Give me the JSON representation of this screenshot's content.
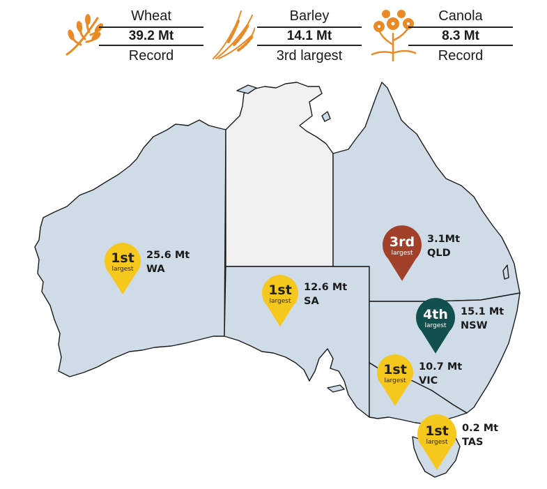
{
  "header": {
    "crops": [
      {
        "name": "Wheat",
        "value": "39.2 Mt",
        "note": "Record",
        "icon": "wheat-icon"
      },
      {
        "name": "Barley",
        "value": "14.1 Mt",
        "note": "3rd largest",
        "icon": "barley-icon"
      },
      {
        "name": "Canola",
        "value": "8.3 Mt",
        "note": "Record",
        "icon": "canola-icon"
      }
    ]
  },
  "colors": {
    "land": "#cfdbe6",
    "nt": "#f1f1f1",
    "border": "#1a1a1a",
    "gold": "#f6c71c",
    "rust": "#a3402a",
    "teal": "#12504f",
    "icon": "#ea8a26"
  },
  "states": [
    {
      "id": "WA",
      "rank": "1st",
      "rank_sub": "largest",
      "value": "25.6 Mt",
      "label": "WA",
      "color": "#f6c71c",
      "text_color": "#222222"
    },
    {
      "id": "SA",
      "rank": "1st",
      "rank_sub": "largest",
      "value": "12.6 Mt",
      "label": "SA",
      "color": "#f6c71c",
      "text_color": "#222222"
    },
    {
      "id": "QLD",
      "rank": "3rd",
      "rank_sub": "largest",
      "value": "3.1Mt",
      "label": "QLD",
      "color": "#a3402a",
      "text_color": "#ffffff"
    },
    {
      "id": "NSW",
      "rank": "4th",
      "rank_sub": "largest",
      "value": "15.1 Mt",
      "label": "NSW",
      "color": "#12504f",
      "text_color": "#ffffff"
    },
    {
      "id": "VIC",
      "rank": "1st",
      "rank_sub": "largest",
      "value": "10.7 Mt",
      "label": "VIC",
      "color": "#f6c71c",
      "text_color": "#222222"
    },
    {
      "id": "TAS",
      "rank": "1st",
      "rank_sub": "largest",
      "value": "0.2 Mt",
      "label": "TAS",
      "color": "#f6c71c",
      "text_color": "#222222"
    }
  ]
}
